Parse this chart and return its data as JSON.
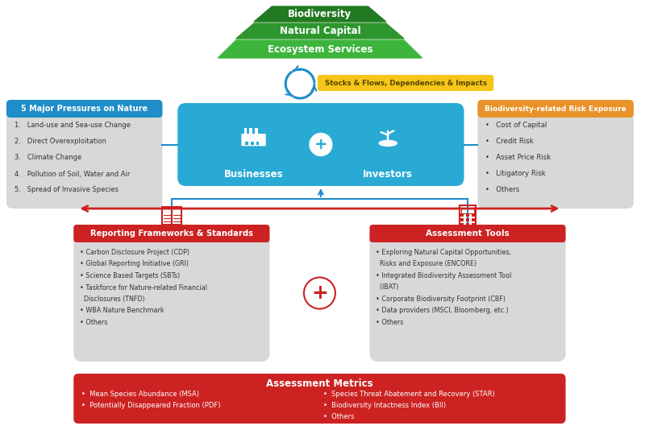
{
  "bg_color": "#ffffff",
  "green_dark": "#217a21",
  "green_mid": "#2e962e",
  "green_light": "#3db53d",
  "blue_header": "#1e8dc8",
  "blue_main": "#29aad5",
  "orange_header": "#e8922a",
  "red_header": "#cc2222",
  "gray_box": "#d8d8d8",
  "yellow_box": "#f5c518",
  "white": "#ffffff",
  "dark_text": "#333333",
  "pyramid_labels": [
    "Biodiversity",
    "Natural Capital",
    "Ecosystem Services"
  ],
  "cycle_label": "Stocks & Flows, Dependencies & Impacts",
  "pressures_title": "5 Major Pressures on Nature",
  "pressures_items": [
    "Land-use and Sea-use Change",
    "Direct Overexploitation",
    "Climate Change",
    "Pollution of Soil, Water and Air",
    "Spread of Invasive Species"
  ],
  "risk_title": "Biodiversity-related Risk Exposure",
  "risk_items": [
    "Cost of Capital",
    "Credit Risk",
    "Asset Price Risk",
    "Litigatory Risk",
    "Others"
  ],
  "businesses_label": "Businesses",
  "investors_label": "Investors",
  "reporting_title": "Reporting Frameworks & Standards",
  "reporting_items": [
    "Carbon Disclosure Project (CDP)",
    "Global Reporting Initiative (GRI)",
    "Science Based Targets (SBTs)",
    "Taskforce for Nature-related Financial\n  Disclosures (TNFD)",
    "WBA Nature Benchmark",
    "Others"
  ],
  "assessment_title": "Assessment Tools",
  "assessment_items": [
    "Exploring Natural Capital Opportunities,\n  Risks and Exposure (ENCORE)",
    "Integrated Biodiversity Assessment Tool\n  (IBAT)",
    "Corporate Biodiversity Footprint (CBF)",
    "Data providers (MSCI, Bloomberg, etc.)",
    "Others"
  ],
  "metrics_title": "Assessment Metrics",
  "metrics_left": [
    "Mean Species Abundance (MSA)",
    "Potentially Disappeared Fraction (PDF)"
  ],
  "metrics_right": [
    "Species Threat Abatement and Recovery (STAR)",
    "Biodiversity Intactness Index (BII)",
    "Others"
  ]
}
